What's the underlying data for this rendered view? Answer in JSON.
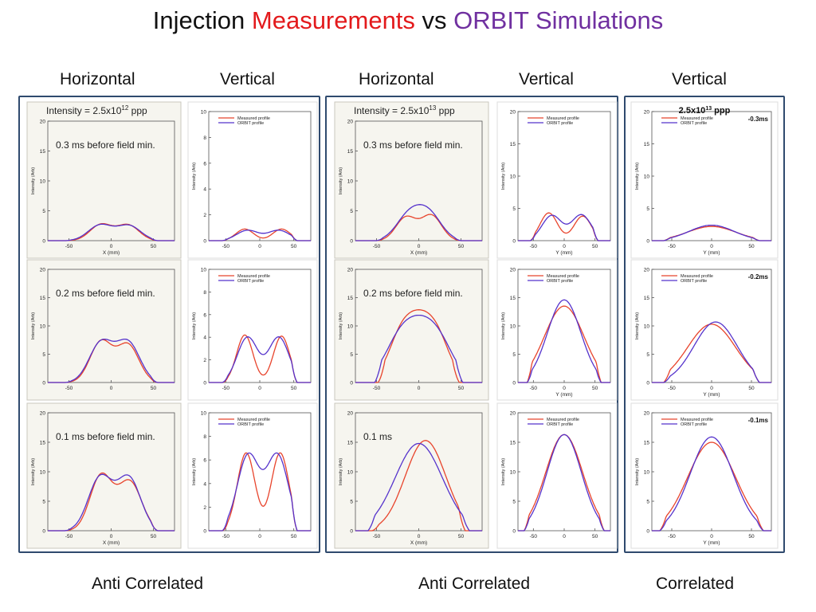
{
  "page": {
    "title_parts": [
      "Injection",
      "Measurements",
      "vs",
      "ORBIT Simulations"
    ],
    "column_headers": [
      "Horizontal",
      "Vertical",
      "Horizontal",
      "Vertical",
      "Vertical"
    ],
    "bottom_labels": [
      "Anti Correlated",
      "Anti Correlated",
      "Correlated"
    ]
  },
  "colors": {
    "measured": "#e8442c",
    "orbit": "#5533cc",
    "frame": "#2f4a6e",
    "red_title": "#e31a1c",
    "purple_title": "#7030a0"
  },
  "chart_data": [
    {
      "type": "line",
      "group": "2.5x10^12 ppp",
      "plane": "Horizontal",
      "row": 1,
      "xlim": [
        -75,
        75
      ],
      "ylim": [
        0,
        20
      ],
      "xticks": [
        -50,
        0,
        50
      ],
      "yticks": [
        0,
        5,
        10,
        15,
        20
      ],
      "xlabel": "X (mm)",
      "ylabel": "Intensity (Arb)",
      "banner": "Intensity = 2.5x10",
      "banner_exp": "12",
      "banner_unit": "ppp",
      "annotation": "0.3 ms before field min.",
      "series": [
        {
          "name": "Measured",
          "peaks": [
            [
              -12,
              2.7,
              13
            ],
            [
              20,
              2.6,
              13
            ]
          ],
          "support": [
            -55,
            55
          ]
        },
        {
          "name": "ORBIT",
          "peaks": [
            [
              -13,
              2.6,
              14
            ],
            [
              21,
              2.5,
              14
            ]
          ],
          "support": [
            -55,
            55
          ]
        }
      ]
    },
    {
      "type": "line",
      "group": "2.5x10^12 ppp",
      "plane": "Vertical",
      "row": 1,
      "xlim": [
        -75,
        75
      ],
      "ylim": [
        0,
        10
      ],
      "xticks": [
        -50,
        0,
        50
      ],
      "yticks": [
        0,
        2,
        4,
        6,
        8,
        10
      ],
      "xlabel": "",
      "ylabel": "Intensity (Arb)",
      "legend": [
        "Measured profile",
        "ORBIT profile"
      ],
      "series": [
        {
          "name": "Measured",
          "peaks": [
            [
              -22,
              0.9,
              13
            ],
            [
              32,
              0.9,
              13
            ]
          ],
          "support": [
            -55,
            55
          ]
        },
        {
          "name": "ORBIT",
          "peaks": [
            [
              -18,
              0.8,
              16
            ],
            [
              28,
              0.8,
              16
            ]
          ],
          "support": [
            -55,
            55
          ]
        }
      ]
    },
    {
      "type": "line",
      "group": "2.5x10^12 ppp",
      "plane": "Horizontal",
      "row": 2,
      "xlim": [
        -75,
        75
      ],
      "ylim": [
        0,
        20
      ],
      "xticks": [
        -50,
        0,
        50
      ],
      "yticks": [
        0,
        5,
        10,
        15,
        20
      ],
      "xlabel": "",
      "ylabel": "Intensity (Arb)",
      "annotation": "0.2 ms before field min.",
      "series": [
        {
          "name": "Measured",
          "peaks": [
            [
              -12,
              7.2,
              13
            ],
            [
              20,
              6.6,
              13
            ]
          ],
          "support": [
            -55,
            55
          ]
        },
        {
          "name": "ORBIT",
          "peaks": [
            [
              -12,
              7.0,
              14
            ],
            [
              20,
              7.0,
              14
            ]
          ],
          "support": [
            -55,
            55
          ]
        }
      ]
    },
    {
      "type": "line",
      "group": "2.5x10^12 ppp",
      "plane": "Vertical",
      "row": 2,
      "xlim": [
        -75,
        75
      ],
      "ylim": [
        0,
        10
      ],
      "xticks": [
        -50,
        0,
        50
      ],
      "yticks": [
        0,
        2,
        4,
        6,
        8,
        10
      ],
      "xlabel": "",
      "ylabel": "Intensity (Arb)",
      "legend": [
        "Measured profile",
        "ORBIT profile"
      ],
      "series": [
        {
          "name": "Measured",
          "peaks": [
            [
              -22,
              4.2,
              12
            ],
            [
              32,
              4.1,
              12
            ]
          ],
          "support": [
            -55,
            55
          ]
        },
        {
          "name": "ORBIT",
          "peaks": [
            [
              -18,
              4.0,
              15
            ],
            [
              28,
              4.0,
              15
            ]
          ],
          "support": [
            -55,
            55
          ]
        }
      ]
    },
    {
      "type": "line",
      "group": "2.5x10^12 ppp",
      "plane": "Horizontal",
      "row": 3,
      "xlim": [
        -75,
        75
      ],
      "ylim": [
        0,
        20
      ],
      "xticks": [
        -50,
        0,
        50
      ],
      "yticks": [
        0,
        5,
        10,
        15,
        20
      ],
      "xlabel": "X (mm)",
      "ylabel": "Intensity (Arb)",
      "annotation": "0.1 ms before field min.",
      "series": [
        {
          "name": "Measured",
          "peaks": [
            [
              -12,
              9.3,
              13
            ],
            [
              22,
              8.3,
              14
            ]
          ],
          "support": [
            -55,
            55
          ]
        },
        {
          "name": "ORBIT",
          "peaks": [
            [
              -13,
              9.0,
              14
            ],
            [
              21,
              8.9,
              14
            ]
          ],
          "support": [
            -55,
            55
          ]
        }
      ]
    },
    {
      "type": "line",
      "group": "2.5x10^12 ppp",
      "plane": "Vertical",
      "row": 3,
      "xlim": [
        -75,
        75
      ],
      "ylim": [
        0,
        10
      ],
      "xticks": [
        -50,
        0,
        50
      ],
      "yticks": [
        0,
        2,
        4,
        6,
        8,
        10
      ],
      "xlabel": "",
      "ylabel": "Intensity (Arb)",
      "legend": [
        "Measured profile",
        "ORBIT profile"
      ],
      "series": [
        {
          "name": "Measured",
          "peaks": [
            [
              -20,
              6.6,
              13
            ],
            [
              30,
              6.6,
              13
            ]
          ],
          "support": [
            -55,
            55
          ]
        },
        {
          "name": "ORBIT",
          "peaks": [
            [
              -17,
              6.4,
              16
            ],
            [
              26,
              6.4,
              16
            ]
          ],
          "support": [
            -55,
            55
          ]
        }
      ]
    },
    {
      "type": "line",
      "group": "2.5x10^13 ppp",
      "plane": "Horizontal",
      "row": 1,
      "xlim": [
        -75,
        75
      ],
      "ylim": [
        0,
        20
      ],
      "xticks": [
        -50,
        0,
        50
      ],
      "yticks": [
        0,
        5,
        10,
        15,
        20
      ],
      "xlabel": "X (mm)",
      "ylabel": "Intensity (Arb)",
      "banner": "Intensity = 2.5x10",
      "banner_exp": "13",
      "banner_unit": "ppp",
      "annotation": "0.3 ms before field min.",
      "series": [
        {
          "name": "Measured",
          "peaks": [
            [
              -15,
              3.9,
              12
            ],
            [
              15,
              4.2,
              12
            ]
          ],
          "support": [
            -50,
            50
          ]
        },
        {
          "name": "ORBIT",
          "peaks": [
            [
              -12,
              4.0,
              15
            ],
            [
              12,
              4.3,
              15
            ]
          ],
          "support": [
            -50,
            50
          ]
        }
      ]
    },
    {
      "type": "line",
      "group": "2.5x10^13 ppp",
      "plane": "Vertical",
      "row": 1,
      "xlim": [
        -75,
        75
      ],
      "ylim": [
        0,
        20
      ],
      "xticks": [
        -50,
        0,
        50
      ],
      "yticks": [
        0,
        5,
        10,
        15,
        20
      ],
      "xlabel": "Y (mm)",
      "ylabel": "Intensity (Arb)",
      "legend": [
        "Measured profile",
        "ORBIT profile"
      ],
      "series": [
        {
          "name": "Measured",
          "peaks": [
            [
              -25,
              4.3,
              14
            ],
            [
              30,
              3.8,
              14
            ]
          ],
          "support": [
            -55,
            55
          ]
        },
        {
          "name": "ORBIT",
          "peaks": [
            [
              -20,
              3.9,
              16
            ],
            [
              28,
              4.0,
              16
            ]
          ],
          "support": [
            -55,
            55
          ]
        }
      ]
    },
    {
      "type": "line",
      "group": "2.5x10^13 ppp",
      "plane": "Horizontal",
      "row": 2,
      "xlim": [
        -75,
        75
      ],
      "ylim": [
        0,
        20
      ],
      "xticks": [
        -50,
        0,
        50
      ],
      "yticks": [
        0,
        5,
        10,
        15,
        20
      ],
      "xlabel": "",
      "ylabel": "Intensity (Arb)",
      "annotation": "0.2 ms before field min.",
      "series": [
        {
          "name": "Measured",
          "plateau": [
            13.6,
            -32,
            32,
            9
          ],
          "support": [
            -48,
            48
          ]
        },
        {
          "name": "ORBIT",
          "plateau": [
            12.9,
            -35,
            35,
            11
          ],
          "support": [
            -52,
            52
          ]
        }
      ]
    },
    {
      "type": "line",
      "group": "2.5x10^13 ppp",
      "plane": "Vertical",
      "row": 2,
      "xlim": [
        -75,
        75
      ],
      "ylim": [
        0,
        20
      ],
      "xticks": [
        -50,
        0,
        50
      ],
      "yticks": [
        0,
        5,
        10,
        15,
        20
      ],
      "xlabel": "Y (mm)",
      "ylabel": "Intensity (Arb)",
      "legend": [
        "Measured profile",
        "ORBIT profile"
      ],
      "series": [
        {
          "name": "Measured",
          "peaks": [
            [
              0,
              13.5,
              32
            ]
          ],
          "support": [
            -60,
            60
          ]
        },
        {
          "name": "ORBIT",
          "peaks": [
            [
              0,
              14.6,
              27
            ]
          ],
          "support": [
            -60,
            60
          ]
        }
      ]
    },
    {
      "type": "line",
      "group": "2.5x10^13 ppp",
      "plane": "Horizontal",
      "row": 3,
      "xlim": [
        -75,
        75
      ],
      "ylim": [
        0,
        20
      ],
      "xticks": [
        -50,
        0,
        50
      ],
      "yticks": [
        0,
        5,
        10,
        15,
        20
      ],
      "xlabel": "X (mm)",
      "ylabel": "Intensity (Arb)",
      "annotation": "0.1 ms",
      "series": [
        {
          "name": "Measured",
          "peaks": [
            [
              8,
              15.3,
              24
            ]
          ],
          "support": [
            -55,
            55
          ]
        },
        {
          "name": "ORBIT",
          "peaks": [
            [
              0,
              14.8,
              28
            ]
          ],
          "support": [
            -60,
            60
          ]
        }
      ]
    },
    {
      "type": "line",
      "group": "2.5x10^13 ppp",
      "plane": "Vertical",
      "row": 3,
      "xlim": [
        -75,
        75
      ],
      "ylim": [
        0,
        20
      ],
      "xticks": [
        -50,
        0,
        50
      ],
      "yticks": [
        0,
        5,
        10,
        15,
        20
      ],
      "xlabel": "",
      "ylabel": "Intensity (Arb)",
      "legend": [
        "Measured profile",
        "ORBIT profile"
      ],
      "series": [
        {
          "name": "Measured",
          "peaks": [
            [
              0,
              16.3,
              30
            ]
          ],
          "support": [
            -65,
            65
          ]
        },
        {
          "name": "ORBIT",
          "peaks": [
            [
              0,
              16.3,
              28
            ]
          ],
          "support": [
            -65,
            65
          ]
        }
      ]
    },
    {
      "type": "line",
      "group": "2.5x10^13 ppp correlated",
      "plane": "Vertical",
      "row": 1,
      "xlim": [
        -75,
        75
      ],
      "ylim": [
        0,
        20
      ],
      "xticks": [
        -50,
        0,
        50
      ],
      "yticks": [
        0,
        5,
        10,
        15,
        20
      ],
      "xlabel": "Y (mm)",
      "ylabel": "Intensity (Arb)",
      "legend": [
        "Measured profile",
        "ORBIT profile"
      ],
      "header": "2.5x10",
      "header_exp": "13",
      "header_unit": "ppp",
      "annotation": "-0.3ms",
      "series": [
        {
          "name": "Measured",
          "peaks": [
            [
              0,
              2.2,
              30
            ]
          ],
          "support": [
            -60,
            60
          ]
        },
        {
          "name": "ORBIT",
          "peaks": [
            [
              0,
              2.4,
              28
            ]
          ],
          "support": [
            -60,
            60
          ]
        }
      ]
    },
    {
      "type": "line",
      "group": "2.5x10^13 ppp correlated",
      "plane": "Vertical",
      "row": 2,
      "xlim": [
        -75,
        75
      ],
      "ylim": [
        0,
        20
      ],
      "xticks": [
        -50,
        0,
        50
      ],
      "yticks": [
        0,
        5,
        10,
        15,
        20
      ],
      "xlabel": "Y (mm)",
      "ylabel": "Intensity (Arb)",
      "legend": [
        "Measured profile",
        "ORBIT profile"
      ],
      "annotation": "-0.2ms",
      "series": [
        {
          "name": "Measured",
          "peaks": [
            [
              0,
              10.3,
              30
            ]
          ],
          "support": [
            -60,
            60
          ]
        },
        {
          "name": "ORBIT",
          "peaks": [
            [
              5,
              10.7,
              27
            ]
          ],
          "support": [
            -60,
            60
          ]
        }
      ]
    },
    {
      "type": "line",
      "group": "2.5x10^13 ppp correlated",
      "plane": "Vertical",
      "row": 3,
      "xlim": [
        -75,
        75
      ],
      "ylim": [
        0,
        20
      ],
      "xticks": [
        -50,
        0,
        50
      ],
      "yticks": [
        0,
        5,
        10,
        15,
        20
      ],
      "xlabel": "Y (mm)",
      "ylabel": "Intensity (Arb)",
      "legend": [
        "Measured profile",
        "ORBIT profile"
      ],
      "annotation": "-0.1ms",
      "series": [
        {
          "name": "Measured",
          "peaks": [
            [
              0,
              15.0,
              30
            ]
          ],
          "support": [
            -65,
            65
          ]
        },
        {
          "name": "ORBIT",
          "peaks": [
            [
              0,
              15.9,
              27
            ]
          ],
          "support": [
            -65,
            65
          ]
        }
      ]
    }
  ]
}
